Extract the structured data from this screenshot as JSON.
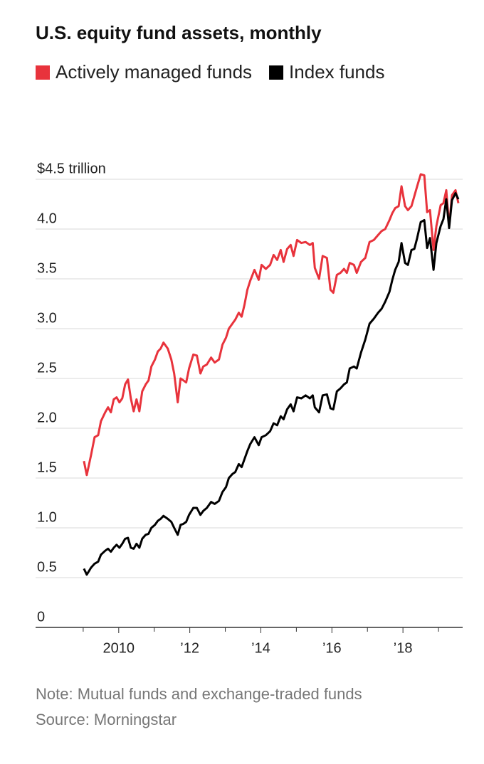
{
  "chart_data": {
    "type": "line",
    "title": "U.S. equity fund assets, monthly",
    "note": "Note: Mutual funds and exchange-traded funds",
    "source": "Source: Morningstar",
    "legend": "top-left",
    "grid": true,
    "x": [
      2009.02,
      2009.1,
      2009.22,
      2009.32,
      2009.42,
      2009.5,
      2009.62,
      2009.7,
      2009.78,
      2009.86,
      2009.94,
      2010.02,
      2010.1,
      2010.18,
      2010.26,
      2010.34,
      2010.42,
      2010.5,
      2010.58,
      2010.66,
      2010.76,
      2010.84,
      2010.92,
      2011.02,
      2011.1,
      2011.18,
      2011.26,
      2011.38,
      2011.48,
      2011.56,
      2011.66,
      2011.74,
      2011.82,
      2011.9,
      2011.98,
      2012.1,
      2012.2,
      2012.3,
      2012.38,
      2012.48,
      2012.6,
      2012.7,
      2012.82,
      2012.92,
      2013.02,
      2013.1,
      2013.2,
      2013.28,
      2013.38,
      2013.46,
      2013.54,
      2013.62,
      2013.7,
      2013.82,
      2013.94,
      2014.02,
      2014.14,
      2014.26,
      2014.36,
      2014.46,
      2014.56,
      2014.64,
      2014.74,
      2014.84,
      2014.92,
      2015.02,
      2015.14,
      2015.26,
      2015.38,
      2015.46,
      2015.52,
      2015.64,
      2015.74,
      2015.86,
      2015.96,
      2016.04,
      2016.14,
      2016.24,
      2016.34,
      2016.42,
      2016.5,
      2016.62,
      2016.7,
      2016.82,
      2016.94,
      2017.06,
      2017.18,
      2017.3,
      2017.4,
      2017.5,
      2017.62,
      2017.7,
      2017.78,
      2017.88,
      2017.96,
      2018.06,
      2018.14,
      2018.24,
      2018.32,
      2018.4,
      2018.5,
      2018.6,
      2018.68,
      2018.76,
      2018.86,
      2018.94,
      2019.06,
      2019.14,
      2019.22,
      2019.3,
      2019.38,
      2019.48,
      2019.56
    ],
    "series": [
      {
        "name": "Actively managed funds",
        "color": "#e8333c",
        "values": [
          1.67,
          1.53,
          1.73,
          1.91,
          1.93,
          2.07,
          2.16,
          2.21,
          2.16,
          2.29,
          2.31,
          2.26,
          2.3,
          2.44,
          2.49,
          2.3,
          2.17,
          2.29,
          2.17,
          2.37,
          2.44,
          2.48,
          2.62,
          2.69,
          2.77,
          2.8,
          2.86,
          2.8,
          2.69,
          2.55,
          2.26,
          2.5,
          2.48,
          2.46,
          2.6,
          2.74,
          2.73,
          2.55,
          2.62,
          2.64,
          2.71,
          2.66,
          2.69,
          2.84,
          2.91,
          3.0,
          3.05,
          3.09,
          3.16,
          3.12,
          3.24,
          3.39,
          3.48,
          3.59,
          3.49,
          3.64,
          3.6,
          3.64,
          3.74,
          3.69,
          3.79,
          3.67,
          3.8,
          3.84,
          3.73,
          3.89,
          3.86,
          3.87,
          3.84,
          3.86,
          3.61,
          3.5,
          3.73,
          3.71,
          3.39,
          3.36,
          3.54,
          3.56,
          3.6,
          3.56,
          3.66,
          3.64,
          3.56,
          3.67,
          3.71,
          3.87,
          3.89,
          3.94,
          3.98,
          4.0,
          4.09,
          4.16,
          4.21,
          4.23,
          4.43,
          4.23,
          4.19,
          4.23,
          4.33,
          4.43,
          4.55,
          4.54,
          4.17,
          4.19,
          3.79,
          4.03,
          4.24,
          4.26,
          4.39,
          4.03,
          4.34,
          4.39,
          4.26
        ]
      },
      {
        "name": "Index funds",
        "color": "#000000",
        "values": [
          0.59,
          0.53,
          0.6,
          0.64,
          0.66,
          0.73,
          0.77,
          0.79,
          0.76,
          0.8,
          0.83,
          0.8,
          0.84,
          0.89,
          0.9,
          0.8,
          0.79,
          0.84,
          0.8,
          0.89,
          0.93,
          0.94,
          1.0,
          1.03,
          1.07,
          1.09,
          1.12,
          1.09,
          1.06,
          1.0,
          0.93,
          1.03,
          1.04,
          1.06,
          1.13,
          1.2,
          1.2,
          1.13,
          1.17,
          1.2,
          1.26,
          1.24,
          1.27,
          1.36,
          1.41,
          1.5,
          1.54,
          1.56,
          1.64,
          1.61,
          1.69,
          1.77,
          1.84,
          1.91,
          1.83,
          1.91,
          1.93,
          1.97,
          2.05,
          2.03,
          2.12,
          2.09,
          2.19,
          2.24,
          2.17,
          2.31,
          2.3,
          2.33,
          2.3,
          2.33,
          2.21,
          2.16,
          2.33,
          2.34,
          2.2,
          2.19,
          2.37,
          2.4,
          2.44,
          2.46,
          2.6,
          2.62,
          2.6,
          2.76,
          2.89,
          3.05,
          3.1,
          3.16,
          3.2,
          3.27,
          3.37,
          3.49,
          3.59,
          3.67,
          3.86,
          3.66,
          3.64,
          3.79,
          3.8,
          3.91,
          4.07,
          4.09,
          3.81,
          3.91,
          3.59,
          3.86,
          4.03,
          4.1,
          4.3,
          4.01,
          4.29,
          4.36,
          4.3
        ]
      }
    ],
    "xlim": [
      2007.66,
      2019.68
    ],
    "xticks": [
      2010,
      {
        "value": 2012,
        "label": "’12"
      },
      {
        "value": 2014,
        "label": "’14"
      },
      {
        "value": 2016,
        "label": "’16"
      },
      {
        "value": 2018,
        "label": "’18"
      }
    ],
    "xminor_ticks": [
      2009,
      2011,
      2013,
      2015,
      2017,
      2019
    ],
    "ylim": [
      0,
      4.5
    ],
    "yticks": [
      0,
      0.5,
      {
        "value": 1,
        "label": "1.0"
      },
      1.5,
      {
        "value": 2,
        "label": "2.0"
      },
      2.5,
      {
        "value": 3,
        "label": "3.0"
      },
      3.5,
      {
        "value": 4,
        "label": "4.0"
      },
      {
        "value": 4.5,
        "label": "$4.5 trillion"
      }
    ]
  }
}
